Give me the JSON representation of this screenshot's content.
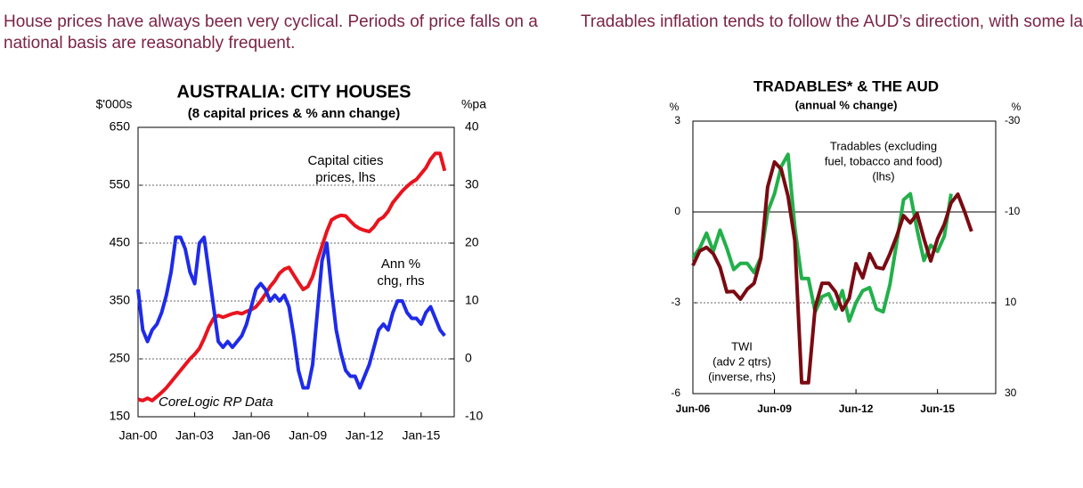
{
  "captions": [
    "House prices have always been very cyclical. Periods of price falls on a national basis are reasonably frequent.",
    "Tradables inflation tends to follow the AUD’s direction, with some lags."
  ],
  "chart_data": [
    {
      "type": "line",
      "title": "AUSTRALIA: CITY HOUSES",
      "subtitle": "(8 capital prices & % ann change)",
      "ylabel": "$'000s",
      "y2label": "%pa",
      "x": [
        "Jan-00",
        "Apr-00",
        "Jul-00",
        "Oct-00",
        "Jan-01",
        "Apr-01",
        "Jul-01",
        "Oct-01",
        "Jan-02",
        "Apr-02",
        "Jul-02",
        "Oct-02",
        "Jan-03",
        "Apr-03",
        "Jul-03",
        "Oct-03",
        "Jan-04",
        "Apr-04",
        "Jul-04",
        "Oct-04",
        "Jan-05",
        "Apr-05",
        "Jul-05",
        "Oct-05",
        "Jan-06",
        "Apr-06",
        "Jul-06",
        "Oct-06",
        "Jan-07",
        "Apr-07",
        "Jul-07",
        "Oct-07",
        "Jan-08",
        "Apr-08",
        "Jul-08",
        "Oct-08",
        "Jan-09",
        "Apr-09",
        "Jul-09",
        "Oct-09",
        "Jan-10",
        "Apr-10",
        "Jul-10",
        "Oct-10",
        "Jan-11",
        "Apr-11",
        "Jul-11",
        "Oct-11",
        "Jan-12",
        "Apr-12",
        "Jul-12",
        "Oct-12",
        "Jan-13",
        "Apr-13",
        "Jul-13",
        "Oct-13",
        "Jan-14",
        "Apr-14",
        "Jul-14",
        "Oct-14",
        "Jan-15",
        "Apr-15",
        "Jul-15",
        "Oct-15",
        "Jan-16",
        "Apr-16"
      ],
      "xticks": [
        "Jan-00",
        "Jan-03",
        "Jan-06",
        "Jan-09",
        "Jan-12",
        "Jan-15"
      ],
      "ylim": [
        150,
        650
      ],
      "yticks": [
        150,
        250,
        350,
        450,
        550,
        650
      ],
      "y2lim": [
        -10,
        40
      ],
      "y2ticks": [
        -10,
        0,
        10,
        20,
        30,
        40
      ],
      "grid": true,
      "series": [
        {
          "name": "Capital cities prices, lhs",
          "color": "#e8141e",
          "values": [
            180,
            178,
            182,
            178,
            185,
            192,
            200,
            210,
            220,
            230,
            240,
            250,
            258,
            268,
            285,
            305,
            320,
            325,
            322,
            325,
            328,
            330,
            328,
            332,
            335,
            340,
            350,
            362,
            375,
            385,
            398,
            405,
            408,
            395,
            382,
            370,
            375,
            392,
            420,
            445,
            470,
            490,
            495,
            498,
            497,
            488,
            480,
            475,
            472,
            470,
            478,
            490,
            495,
            505,
            520,
            530,
            540,
            548,
            555,
            560,
            570,
            580,
            595,
            605,
            605,
            575
          ]
        },
        {
          "name": "Ann % chg, rhs",
          "color": "#1f2be8",
          "axis": "y2",
          "values": [
            12,
            5,
            3,
            5,
            6,
            8,
            11,
            15,
            21,
            21,
            19,
            15,
            13,
            20,
            21,
            15,
            9,
            3,
            2,
            3,
            2,
            3,
            4,
            6,
            9,
            12,
            13,
            12,
            10,
            11,
            10,
            11,
            9,
            4,
            -2,
            -5,
            -5,
            -1,
            8,
            17,
            20,
            12,
            5,
            1,
            -2,
            -3,
            -3,
            -5,
            -3,
            -1,
            2,
            5,
            6,
            5,
            8,
            10,
            10,
            8,
            7,
            7,
            6,
            8,
            9,
            7,
            5,
            4
          ]
        }
      ],
      "annotations": [
        {
          "lines": [
            "Capital cities",
            "prices, lhs"
          ],
          "color": "#e8141e"
        },
        {
          "lines": [
            "Ann %",
            "chg, rhs"
          ],
          "color": "#1f2be8"
        },
        {
          "lines": [
            "CoreLogic RP Data"
          ],
          "color": "#000000"
        }
      ]
    },
    {
      "type": "line",
      "title": "TRADABLES* & THE AUD",
      "subtitle": "(annual % change)",
      "ylabel": "%",
      "y2label": "%",
      "x": [
        "Jun-06",
        "Sep-06",
        "Dec-06",
        "Mar-07",
        "Jun-07",
        "Sep-07",
        "Dec-07",
        "Mar-08",
        "Jun-08",
        "Sep-08",
        "Dec-08",
        "Mar-09",
        "Jun-09",
        "Sep-09",
        "Dec-09",
        "Mar-10",
        "Jun-10",
        "Sep-10",
        "Dec-10",
        "Mar-11",
        "Jun-11",
        "Sep-11",
        "Dec-11",
        "Mar-12",
        "Jun-12",
        "Sep-12",
        "Dec-12",
        "Mar-13",
        "Jun-13",
        "Sep-13",
        "Dec-13",
        "Mar-14",
        "Jun-14",
        "Sep-14",
        "Dec-14",
        "Mar-15",
        "Jun-15",
        "Sep-15",
        "Dec-15",
        "Mar-16",
        "Jun-16",
        "Sep-16"
      ],
      "xticks": [
        "Jun-06",
        "Jun-09",
        "Jun-12",
        "Jun-15"
      ],
      "ylim": [
        -6,
        3
      ],
      "yticks": [
        -6,
        -3,
        0,
        3
      ],
      "y2lim": [
        30,
        -30
      ],
      "y2ticks": [
        30,
        10,
        -10,
        -30
      ],
      "grid": true,
      "series": [
        {
          "name": "Tradables (excluding fuel, tobacco and food) (lhs)",
          "color": "#22b04b",
          "values": [
            -1.5,
            -1.2,
            -0.7,
            -1.3,
            -0.6,
            -1.2,
            -1.9,
            -1.7,
            -1.7,
            -2.0,
            -1.5,
            0,
            0.6,
            1.5,
            1.9,
            -0.5,
            -2.2,
            -2.2,
            -3.3,
            -2.8,
            -2.7,
            -3.2,
            -2.6,
            -3.6,
            -3.0,
            -2.6,
            -2.5,
            -3.2,
            -3.3,
            -2.4,
            -1.0,
            0.4,
            0.6,
            -0.6,
            -1.6,
            -1.1,
            -1.3,
            -0.8,
            0.6,
            null,
            null,
            null
          ]
        },
        {
          "name": "TWI (adv 2 qtrs) (inverse, rhs)",
          "color": "#7a0a12",
          "axis": "y2",
          "values": [
            1.8,
            -1.4,
            -2.2,
            -0.8,
            2.2,
            7.6,
            7.5,
            9.2,
            7,
            5.7,
            0.2,
            -15.5,
            -21,
            -19.4,
            -13.5,
            -3.7,
            27.6,
            27.6,
            11,
            5.7,
            5.7,
            7.6,
            11.6,
            9,
            1.4,
            4.5,
            -0.8,
            2.2,
            2.5,
            -0.8,
            -4.7,
            -9.2,
            -7.6,
            -9.6,
            -4.1,
            0.8,
            -4.1,
            -7.3,
            -12,
            -13.9,
            -10,
            -5.7
          ]
        }
      ],
      "annotations": [
        {
          "lines": [
            "Tradables (excluding",
            "fuel, tobacco and food)",
            "(lhs)"
          ],
          "color": "#22b04b"
        },
        {
          "lines": [
            "TWI",
            "(adv 2 qtrs)",
            "(inverse, rhs)"
          ],
          "color": "#7a0a12"
        }
      ]
    }
  ]
}
